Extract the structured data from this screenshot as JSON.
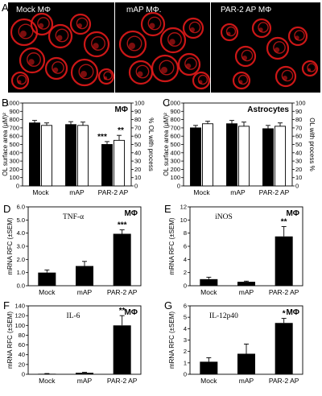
{
  "images": {
    "panel_label": "A",
    "tiles": [
      {
        "caption": "Mock MΦ"
      },
      {
        "caption": "mAP MΦ."
      },
      {
        "caption": "PAR-2 AP MΦ"
      }
    ]
  },
  "colors": {
    "black_bar": "#000000",
    "white_bar": "#ffffff",
    "stain": "#e21a1a"
  },
  "chart_data": [
    {
      "panel": "B",
      "type": "bar",
      "tag": "MΦ",
      "categories": [
        "Mock",
        "mAP",
        "PAR-2 AP"
      ],
      "ylabel": "OL surface area (μM)²",
      "y2label": "% OL with process",
      "ylim": [
        0,
        1000
      ],
      "yticks": [
        "0",
        "100",
        "200",
        "300",
        "400",
        "500",
        "600",
        "700",
        "800",
        "900",
        "1000"
      ],
      "y2lim": [
        0,
        100
      ],
      "y2ticks": [
        "0",
        "10",
        "20",
        "30",
        "40",
        "50",
        "60",
        "70",
        "80",
        "90",
        "100"
      ],
      "series": [
        {
          "values": [
            760,
            740,
            500
          ],
          "errors": [
            30,
            35,
            35
          ],
          "color": "#000000"
        },
        {
          "values": [
            73,
            73,
            55
          ],
          "errors": [
            3,
            4,
            6
          ],
          "color": "#ffffff",
          "axis": "right"
        }
      ],
      "annotations": [
        "***",
        "**"
      ]
    },
    {
      "panel": "C",
      "type": "bar",
      "tag": "Astrocytes",
      "categories": [
        "Mock",
        "mAP",
        "PAR-2 AP"
      ],
      "ylabel": "OL surface area (μM)²",
      "y2label": "OL with process %",
      "ylim": [
        0,
        1000
      ],
      "yticks": [
        "0",
        "100",
        "200",
        "300",
        "400",
        "500",
        "600",
        "700",
        "800",
        "900",
        "1000"
      ],
      "y2lim": [
        0,
        100
      ],
      "y2ticks": [
        "0",
        "10",
        "20",
        "30",
        "40",
        "50",
        "60",
        "70",
        "80",
        "90",
        "100"
      ],
      "series": [
        {
          "values": [
            700,
            750,
            690
          ],
          "errors": [
            30,
            40,
            40
          ],
          "color": "#000000"
        },
        {
          "values": [
            75,
            72,
            72
          ],
          "errors": [
            3,
            5,
            4
          ],
          "color": "#ffffff",
          "axis": "right"
        }
      ],
      "annotations": []
    },
    {
      "panel": "D",
      "type": "bar",
      "title": "TNF-α",
      "tag": "MΦ",
      "categories": [
        "Mock",
        "mAP",
        "PAR-2 AP"
      ],
      "ylabel": "mRNA RFC (±SEM)",
      "ylim": [
        0,
        6
      ],
      "yticks": [
        "0.0",
        "1.0",
        "2.0",
        "3.0",
        "4.0",
        "5.0",
        "6.0"
      ],
      "values": [
        1.0,
        1.5,
        3.95
      ],
      "errors": [
        0.2,
        0.35,
        0.3
      ],
      "annotations": [
        "***"
      ]
    },
    {
      "panel": "E",
      "type": "bar",
      "title": "iNOS",
      "tag": "MΦ",
      "categories": [
        "Mock",
        "mAP",
        "PAR-2 AP"
      ],
      "ylabel": "mRNA RFC (±SEM)",
      "ylim": [
        0,
        12
      ],
      "yticks": [
        "0",
        "2",
        "4",
        "6",
        "8",
        "10",
        "12"
      ],
      "values": [
        1.0,
        0.6,
        7.5
      ],
      "errors": [
        0.3,
        0.1,
        1.5
      ],
      "annotations": [
        "**"
      ]
    },
    {
      "panel": "F",
      "type": "bar",
      "title": "IL-6",
      "tag": "MΦ",
      "categories": [
        "Mock",
        "mAP",
        "PAR-2 AP"
      ],
      "ylabel": "mRNA RFC (±SEM)",
      "ylim": [
        0,
        140
      ],
      "yticks": [
        "0",
        "20",
        "40",
        "60",
        "80",
        "100",
        "120",
        "140"
      ],
      "values": [
        1,
        3,
        100
      ],
      "errors": [
        0.5,
        1,
        20
      ],
      "annotations": [
        "**"
      ]
    },
    {
      "panel": "G",
      "type": "bar",
      "title": "IL-12p40",
      "tag": "MΦ",
      "categories": [
        "Mock",
        "mAP",
        "PAR-2 AP"
      ],
      "ylabel": "mRNA RFC (±SEM)",
      "ylim": [
        0,
        6
      ],
      "yticks": [
        "0",
        "1",
        "2",
        "3",
        "4",
        "5",
        "6"
      ],
      "values": [
        1.1,
        1.8,
        4.5
      ],
      "errors": [
        0.35,
        0.85,
        0.4
      ],
      "annotations": [
        "*"
      ]
    }
  ]
}
